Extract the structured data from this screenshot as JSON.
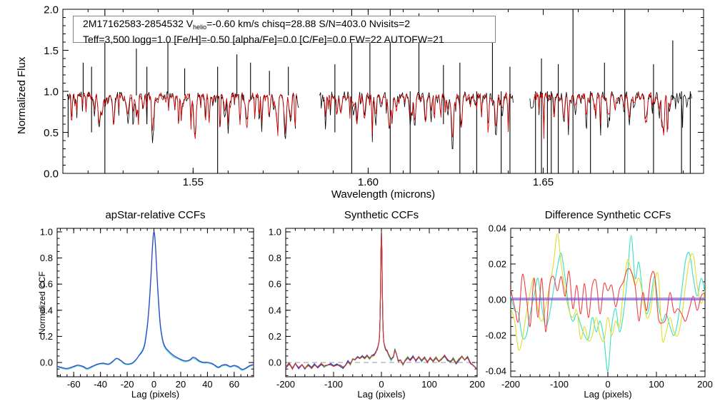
{
  "figure": {
    "background": "#ffffff"
  },
  "chart_data": [
    {
      "type": "line",
      "panel": "spectrum",
      "title": "",
      "xlabel": "Wavelength (microns)",
      "ylabel": "Normalized Flux",
      "xlim": [
        1.5128,
        1.6958
      ],
      "ylim": [
        0.0,
        2.0
      ],
      "xticks": [
        1.55,
        1.6,
        1.65
      ],
      "xtick_labels": [
        "1.55",
        "1.60",
        "1.65"
      ],
      "xminor": 0.01,
      "yticks": [
        0.0,
        0.5,
        1.0,
        1.5,
        2.0
      ],
      "ytick_labels": [
        "0.0",
        "0.5",
        "1.0",
        "1.5",
        "2.0"
      ],
      "yminor": 0.1,
      "annotation": {
        "prefix": "2M17162583-2854532  V",
        "sub": "helio",
        "line1_rest": "=-0.60 km/s  chisq=28.88  S/N=403.0  Nvisits=2",
        "line2": "Teff=3,500 logg=1.0 [Fe/H]=-0.50 [alpha/Fe]=0.0 [C/Fe]=0.0 FW=22 AUTOFW=21"
      },
      "series": [
        {
          "name": "observed-spectrum",
          "color": "#000000",
          "continuum": 0.955,
          "noise": 0.09,
          "segments": [
            [
              1.514,
              1.5802
            ],
            [
              1.586,
              1.6415
            ],
            [
              1.6462,
              1.6925
            ]
          ]
        },
        {
          "name": "synthetic-model-spectrum",
          "color": "#dd0000",
          "continuum": 0.95,
          "noise": 0.07,
          "segments": [
            [
              1.5146,
              1.5796
            ],
            [
              1.5872,
              1.6408
            ],
            [
              1.6472,
              1.6868
            ]
          ]
        }
      ],
      "sky_features": [
        [
          1.5143,
          0.44,
          0.96
        ],
        [
          1.5186,
          0.95,
          1.35
        ],
        [
          1.521,
          0.5,
          1.3
        ],
        [
          1.5248,
          0.0,
          2.0
        ],
        [
          1.5338,
          0.95,
          1.52
        ],
        [
          1.5368,
          0.6,
          1.3
        ],
        [
          1.5428,
          0.95,
          1.62
        ],
        [
          1.5476,
          0.95,
          1.28
        ],
        [
          1.557,
          0.0,
          1.3
        ],
        [
          1.5625,
          0.95,
          1.45
        ],
        [
          1.5664,
          0.9,
          1.35
        ],
        [
          1.5718,
          0.95,
          1.25
        ],
        [
          1.5772,
          0.95,
          1.3
        ],
        [
          1.5905,
          0.5,
          1.33
        ],
        [
          1.5953,
          0.0,
          2.0
        ],
        [
          1.6005,
          0.9,
          1.7
        ],
        [
          1.6063,
          0.0,
          2.0
        ],
        [
          1.612,
          0.0,
          1.0
        ],
        [
          1.6145,
          0.9,
          1.95
        ],
        [
          1.6215,
          0.6,
          1.32
        ],
        [
          1.6262,
          0.0,
          1.35
        ],
        [
          1.631,
          0.0,
          1.0
        ],
        [
          1.6355,
          0.9,
          1.75
        ],
        [
          1.638,
          0.0,
          1.0
        ],
        [
          1.6405,
          0.0,
          1.3
        ],
        [
          1.6478,
          0.0,
          1.0
        ],
        [
          1.6495,
          0.0,
          1.4
        ],
        [
          1.6512,
          0.0,
          1.0
        ],
        [
          1.6523,
          0.0,
          1.0
        ],
        [
          1.6543,
          0.0,
          1.33
        ],
        [
          1.6585,
          0.0,
          2.0
        ],
        [
          1.6635,
          0.0,
          1.0
        ],
        [
          1.6675,
          0.9,
          1.35
        ],
        [
          1.6733,
          0.0,
          2.0
        ],
        [
          1.6815,
          0.0,
          1.33
        ],
        [
          1.687,
          0.9,
          1.62
        ],
        [
          1.6895,
          0.0,
          1.0
        ],
        [
          1.692,
          0.0,
          1.0
        ]
      ]
    },
    {
      "type": "line",
      "panel": "apstar",
      "title": "apStar-relative CCFs",
      "xlabel": "Lag (pixels)",
      "ylabel": "Normalized CCF",
      "xlim": [
        -72.4,
        74.5
      ],
      "ylim": [
        -0.109,
        1.027
      ],
      "xticks": [
        -60,
        -40,
        -20,
        0,
        20,
        40,
        60
      ],
      "xtick_labels": [
        "-60",
        "-40",
        "-20",
        "0",
        "20",
        "40",
        "60"
      ],
      "xminor": 5,
      "yticks": [
        0.0,
        0.2,
        0.4,
        0.6,
        0.8,
        1.0
      ],
      "ytick_labels": [
        "0.0",
        "0.2",
        "0.4",
        "0.6",
        "0.8",
        "1.0"
      ],
      "yminor": 0.05,
      "x": [
        -75,
        -70,
        -65,
        -60,
        -57,
        -53,
        -50,
        -46,
        -42,
        -38,
        -34,
        -31,
        -28,
        -25,
        -22,
        -19,
        -16,
        -13,
        -11,
        -9,
        -7,
        -5,
        -4,
        -3,
        -2,
        -1,
        0,
        1,
        2,
        3,
        4,
        5,
        7,
        9,
        11,
        13,
        15,
        18,
        21,
        24,
        27,
        29,
        31,
        34,
        37,
        40,
        44,
        48,
        51,
        54,
        57,
        60,
        63,
        66,
        69,
        72,
        75
      ],
      "series": [
        {
          "name": "visit-ccf-cyan",
          "color": "#38d0c8",
          "y": [
            -0.025,
            -0.04,
            -0.052,
            -0.036,
            -0.026,
            -0.036,
            -0.052,
            -0.034,
            -0.016,
            -0.01,
            -0.016,
            0.002,
            0.028,
            0.012,
            -0.012,
            -0.016,
            -0.008,
            0.024,
            0.06,
            0.09,
            0.145,
            0.29,
            0.4,
            0.55,
            0.72,
            0.92,
            1.0,
            0.9,
            0.71,
            0.51,
            0.36,
            0.25,
            0.14,
            0.1,
            0.078,
            0.058,
            0.042,
            0.028,
            0.012,
            0.006,
            0.016,
            0.03,
            0.026,
            0.004,
            -0.004,
            -0.004,
            -0.016,
            -0.042,
            -0.026,
            -0.022,
            -0.036,
            -0.028,
            -0.04,
            -0.06,
            -0.046,
            -0.028,
            -0.018
          ]
        },
        {
          "name": "visit-ccf-blue",
          "color": "#3a3ad0",
          "y": [
            -0.02,
            -0.035,
            -0.045,
            -0.03,
            -0.02,
            -0.03,
            -0.045,
            -0.028,
            -0.012,
            -0.005,
            -0.012,
            0.008,
            0.032,
            0.018,
            -0.006,
            -0.012,
            -0.002,
            0.028,
            0.055,
            0.08,
            0.13,
            0.27,
            0.38,
            0.52,
            0.7,
            0.9,
            1.0,
            0.92,
            0.73,
            0.54,
            0.39,
            0.27,
            0.155,
            0.11,
            0.088,
            0.068,
            0.052,
            0.035,
            0.02,
            0.012,
            0.022,
            0.04,
            0.035,
            0.012,
            0.002,
            0.002,
            -0.01,
            -0.035,
            -0.02,
            -0.016,
            -0.03,
            -0.022,
            -0.032,
            -0.052,
            -0.04,
            -0.022,
            -0.015
          ]
        }
      ]
    },
    {
      "type": "line",
      "panel": "synthetic",
      "title": "Synthetic CCFs",
      "xlabel": "Lag (pixels)",
      "ylabel": "",
      "xlim": [
        -200,
        200
      ],
      "ylim": [
        -0.109,
        1.027
      ],
      "xticks": [
        -200,
        -100,
        0,
        100,
        200
      ],
      "xtick_labels": [
        "-200",
        "-100",
        "0",
        "100",
        "200"
      ],
      "xminor": 20,
      "yticks": [
        0.0,
        0.2,
        0.4,
        0.6,
        0.8,
        1.0
      ],
      "ytick_labels": [
        "0.0",
        "0.2",
        "0.4",
        "0.6",
        "0.8",
        "1.0"
      ],
      "yminor": 0.05,
      "zero_line_dashed": true,
      "zero_line_color": "#999999",
      "x": [
        -200,
        -193,
        -186,
        -180,
        -173,
        -166,
        -160,
        -153,
        -146,
        -140,
        -133,
        -126,
        -120,
        -113,
        -106,
        -100,
        -93,
        -86,
        -80,
        -75,
        -70,
        -65,
        -60,
        -55,
        -50,
        -45,
        -40,
        -35,
        -30,
        -25,
        -20,
        -15,
        -12,
        -9,
        -7,
        -5,
        -4,
        -3,
        -2,
        -1,
        0,
        1,
        2,
        3,
        4,
        5,
        7,
        9,
        12,
        15,
        20,
        25,
        28,
        31,
        35,
        40,
        45,
        50,
        55,
        60,
        66,
        72,
        78,
        84,
        90,
        96,
        102,
        108,
        114,
        120,
        126,
        132,
        138,
        144,
        150,
        156,
        162,
        168,
        174,
        180,
        186,
        193,
        200
      ],
      "base_y": [
        -0.04,
        -0.005,
        -0.045,
        -0.012,
        -0.04,
        -0.018,
        -0.046,
        -0.02,
        -0.04,
        -0.012,
        -0.036,
        -0.012,
        -0.032,
        -0.026,
        -0.012,
        -0.03,
        -0.016,
        -0.026,
        -0.04,
        -0.02,
        0.008,
        -0.012,
        0.028,
        0.018,
        0.04,
        0.028,
        0.05,
        0.034,
        0.05,
        0.03,
        0.048,
        0.058,
        0.08,
        0.1,
        0.12,
        0.16,
        0.2,
        0.32,
        0.55,
        0.85,
        1.0,
        0.85,
        0.55,
        0.32,
        0.2,
        0.155,
        0.12,
        0.1,
        0.09,
        0.06,
        0.02,
        0.04,
        0.1,
        0.07,
        0.012,
        0.022,
        -0.02,
        0.015,
        0.04,
        0.02,
        0.046,
        0.016,
        0.04,
        0.012,
        0.036,
        0.002,
        0.032,
        0.012,
        0.036,
        0.006,
        0.03,
        0.05,
        0.02,
        0.002,
        0.032,
        -0.008,
        0.022,
        0.046,
        0.022,
        0.04,
        -0.01,
        -0.03,
        -0.05
      ],
      "jitter": 0.008,
      "series": [
        {
          "name": "synth-ccf-chartreuse",
          "color": "#a8d828"
        },
        {
          "name": "synth-ccf-cyan",
          "color": "#30d0d0"
        },
        {
          "name": "synth-ccf-green",
          "color": "#28b038"
        },
        {
          "name": "synth-ccf-blue",
          "color": "#3030d0"
        },
        {
          "name": "synth-ccf-red",
          "color": "#e03030"
        }
      ]
    },
    {
      "type": "line",
      "panel": "difference",
      "title": "Difference Synthetic CCFs",
      "xlabel": "Lag (pixels)",
      "ylabel": "",
      "xlim": [
        -200,
        200
      ],
      "ylim": [
        -0.0432,
        0.04
      ],
      "xticks": [
        -200,
        -100,
        0,
        100,
        200
      ],
      "xtick_labels": [
        "-200",
        "-100",
        "0",
        "100",
        "200"
      ],
      "xminor": 20,
      "yticks": [
        0.04,
        0.02,
        0.0,
        -0.02,
        -0.04
      ],
      "ytick_labels": [
        "0.04",
        "0.02",
        "0.00",
        "-0.02",
        "-0.04"
      ],
      "yminor": 0.005,
      "x": [
        -200,
        -192,
        -184,
        -176,
        -168,
        -160,
        -152,
        -144,
        -136,
        -128,
        -120,
        -112,
        -104,
        -96,
        -88,
        -80,
        -72,
        -64,
        -56,
        -48,
        -40,
        -32,
        -24,
        -16,
        -8,
        0,
        8,
        16,
        24,
        32,
        40,
        48,
        56,
        64,
        72,
        80,
        88,
        96,
        104,
        112,
        120,
        128,
        136,
        144,
        152,
        160,
        168,
        176,
        184,
        192,
        200
      ],
      "series": [
        {
          "name": "diff-turquoise",
          "color": "#38e0c0",
          "y": [
            0.002,
            -0.006,
            -0.008,
            -0.021,
            -0.02,
            -0.008,
            0.002,
            0.012,
            -0.004,
            -0.015,
            -0.008,
            0.005,
            0.018,
            0.026,
            0.012,
            -0.005,
            -0.012,
            -0.008,
            -0.014,
            -0.02,
            -0.022,
            -0.01,
            -0.018,
            -0.012,
            -0.022,
            -0.04,
            -0.015,
            -0.005,
            -0.018,
            -0.008,
            0.012,
            0.036,
            0.012,
            0.021,
            0.002,
            -0.008,
            0.0,
            0.013,
            -0.003,
            -0.012,
            -0.008,
            -0.015,
            -0.02,
            -0.012,
            0.005,
            0.022,
            0.026,
            0.012,
            0.002,
            0.012,
            0.004
          ]
        },
        {
          "name": "diff-yellow",
          "color": "#dede30",
          "y": [
            -0.005,
            -0.012,
            -0.028,
            -0.022,
            -0.008,
            0.004,
            0.012,
            -0.006,
            -0.012,
            -0.004,
            0.008,
            0.02,
            0.037,
            0.02,
            0.005,
            -0.006,
            -0.01,
            -0.006,
            -0.022,
            -0.015,
            -0.023,
            -0.02,
            -0.01,
            -0.02,
            -0.023,
            -0.01,
            -0.02,
            -0.012,
            -0.015,
            0.005,
            0.022,
            0.016,
            0.008,
            0.012,
            0.002,
            -0.01,
            -0.006,
            0.01,
            0.013,
            -0.022,
            -0.018,
            -0.01,
            -0.018,
            -0.02,
            -0.01,
            0.008,
            0.022,
            0.025,
            0.008,
            -0.002,
            0.005
          ]
        },
        {
          "name": "diff-red",
          "color": "#f04040",
          "y": [
            0.006,
            -0.004,
            -0.012,
            0.014,
            0.002,
            -0.015,
            0.012,
            -0.01,
            0.012,
            -0.018,
            0.008,
            0.013,
            0.005,
            0.013,
            0.002,
            0.016,
            -0.005,
            0.008,
            -0.008,
            0.009,
            -0.01,
            0.008,
            0.01,
            -0.008,
            0.009,
            0.005,
            0.008,
            -0.004,
            0.006,
            0.01,
            0.017,
            0.016,
            0.008,
            -0.012,
            0.004,
            -0.006,
            0.012,
            0.014,
            -0.01,
            -0.013,
            -0.01,
            0.004,
            -0.007,
            -0.005,
            -0.008,
            -0.012,
            -0.005,
            0.002,
            -0.006,
            0.002,
            0.004
          ]
        },
        {
          "name": "diff-zero-blue",
          "color": "#4848d8",
          "flat": 0.0
        },
        {
          "name": "diff-zero-purple",
          "color": "#9848d8",
          "flat": 0.0008
        }
      ]
    }
  ]
}
